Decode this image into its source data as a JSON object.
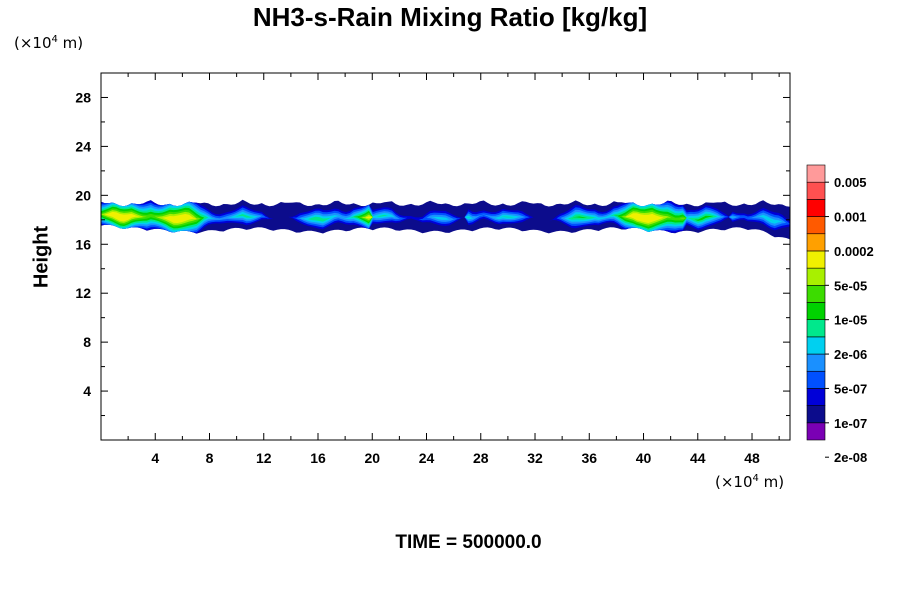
{
  "chart_data": {
    "type": "heatmap",
    "title": "NH3-s-Rain Mixing Ratio [kg/kg]",
    "ylabel": "Height",
    "xlabel": "",
    "y_unit": {
      "prefix": "(×10",
      "exp": "4",
      "suffix": " m)"
    },
    "x_unit": {
      "prefix": "(×10",
      "exp": "4",
      "suffix": " m)"
    },
    "xlim": [
      0,
      50.8
    ],
    "ylim": [
      0,
      30
    ],
    "x_ticks": [
      "4",
      "8",
      "12",
      "16",
      "20",
      "24",
      "28",
      "32",
      "36",
      "40",
      "44",
      "48"
    ],
    "y_ticks": [
      "4",
      "8",
      "12",
      "16",
      "20",
      "24",
      "28"
    ],
    "colorbar": {
      "labels": [
        "0.005",
        "0.001",
        "0.0002",
        "5e-05",
        "1e-05",
        "2e-06",
        "5e-07",
        "1e-07",
        "2e-08"
      ],
      "colors": [
        "#7a00b4",
        "#0c0c8c",
        "#0000d8",
        "#0050ff",
        "#1a90ff",
        "#00d0f0",
        "#00e88c",
        "#00d200",
        "#3cdc00",
        "#a8f000",
        "#f0f000",
        "#ffa000",
        "#ff5a00",
        "#ff0000",
        "#ff5050",
        "#ff9a9a"
      ]
    },
    "layer": {
      "bottom_height": 17,
      "top_height": 19.8,
      "peak_level": "5e-05"
    }
  },
  "footer": {
    "time_label": "TIME = 500000.0"
  }
}
